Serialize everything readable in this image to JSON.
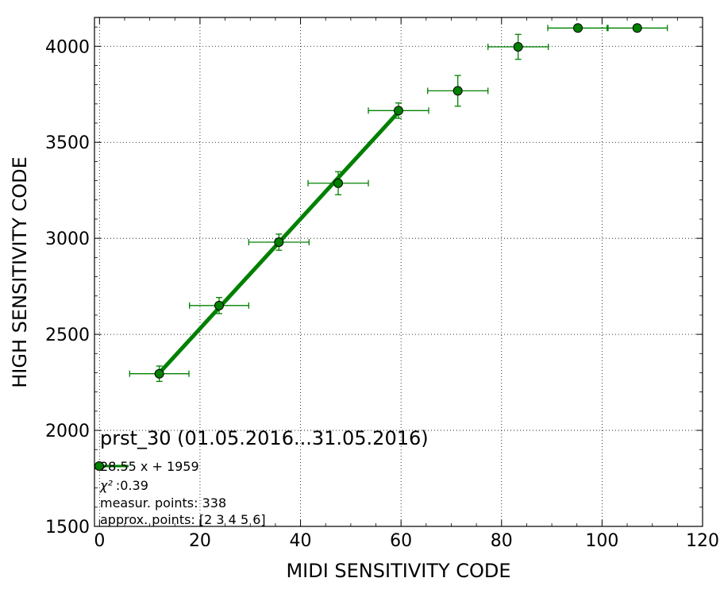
{
  "chart_data": {
    "type": "scatter",
    "xlabel": "MIDI SENSITIVITY CODE",
    "ylabel": "HIGH SENSITIVITY CODE",
    "xlim": [
      -1,
      120
    ],
    "ylim": [
      1500,
      4150
    ],
    "xticks": [
      0,
      20,
      40,
      60,
      80,
      100,
      120
    ],
    "yticks": [
      1500,
      2000,
      2500,
      3000,
      3500,
      4000
    ],
    "grid": true,
    "colors": {
      "series": "#008000",
      "marker_edge": "#000000"
    },
    "points": [
      {
        "x": 11.9,
        "y": 2295,
        "xerr": 5.9,
        "yerr": 40
      },
      {
        "x": 23.8,
        "y": 2650,
        "xerr": 5.9,
        "yerr": 42
      },
      {
        "x": 35.7,
        "y": 2980,
        "xerr": 6.0,
        "yerr": 42
      },
      {
        "x": 47.5,
        "y": 3287,
        "xerr": 6.0,
        "yerr": 60
      },
      {
        "x": 59.5,
        "y": 3665,
        "xerr": 6.0,
        "yerr": 40
      },
      {
        "x": 71.3,
        "y": 3768,
        "xerr": 6.0,
        "yerr": 80
      },
      {
        "x": 83.3,
        "y": 3997,
        "xerr": 6.0,
        "yerr": 65
      },
      {
        "x": 95.2,
        "y": 4095,
        "xerr": 6.0,
        "yerr": 0
      },
      {
        "x": 107.0,
        "y": 4095,
        "xerr": 6.0,
        "yerr": 0
      }
    ],
    "fit_line": {
      "slope": 28.55,
      "intercept": 1959,
      "x_range": [
        11.9,
        59.5
      ]
    },
    "annotation": {
      "title": "prst_30 (01.05.2016...31.05.2016)",
      "fit_text": "28.55 x + 1959",
      "chi_label": "χ²",
      "chi_value": ":0.39",
      "measur_points": "measur. points: 338",
      "approx_points": "approx. points: [2 3 4 5 6]"
    }
  }
}
